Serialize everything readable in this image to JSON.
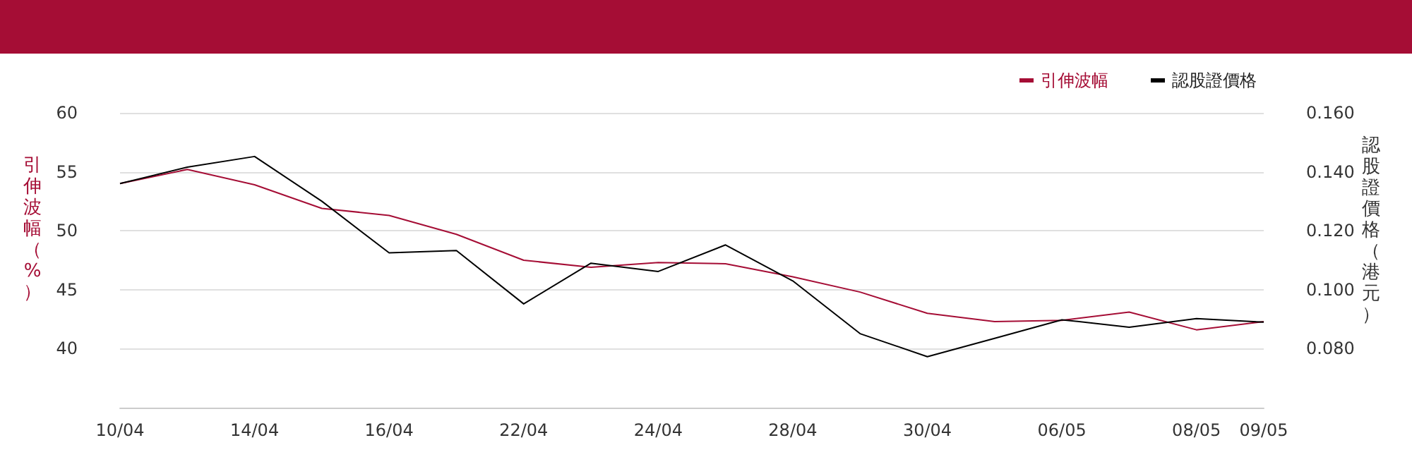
{
  "chart_data": {
    "type": "line",
    "ylabel": "引伸波幅（%）",
    "y2label": "認股證價格（港元）",
    "categories": [
      "10/04",
      null,
      "14/04",
      null,
      "16/04",
      null,
      "22/04",
      null,
      "24/04",
      null,
      "28/04",
      null,
      "30/04",
      null,
      "06/05",
      null,
      "08/05",
      "09/05"
    ],
    "series": [
      {
        "name": "引伸波幅",
        "color": "#a50d35",
        "values": [
          54.0,
          55.2,
          53.9,
          51.9,
          51.3,
          49.7,
          47.5,
          46.9,
          47.3,
          47.2,
          46.1,
          44.8,
          43.0,
          42.3,
          42.4,
          43.1,
          41.6,
          42.3
        ]
      },
      {
        "name": "認股證價格",
        "color": "#000000",
        "axis": "y2",
        "values": [
          0.136,
          0.1416,
          0.1452,
          0.13,
          0.1125,
          0.1133,
          0.0952,
          0.109,
          0.1062,
          0.1152,
          0.103,
          0.0851,
          0.0773,
          0.0835,
          0.0898,
          0.0873,
          0.0902,
          0.089
        ]
      }
    ],
    "ylim": [
      35,
      60
    ],
    "yticks": [
      40,
      45,
      50,
      55,
      60
    ],
    "y2lim": [
      0.06,
      0.16
    ],
    "y2ticks": [
      {
        "value": 0.08,
        "label": "0.080"
      },
      {
        "value": 0.1,
        "label": "0.100"
      },
      {
        "value": 0.12,
        "label": "0.120"
      },
      {
        "value": 0.14,
        "label": "0.140"
      },
      {
        "value": 0.16,
        "label": "0.160"
      }
    ],
    "grid": "y",
    "legend": "top right",
    "marker": "none",
    "line_style": "solid"
  }
}
